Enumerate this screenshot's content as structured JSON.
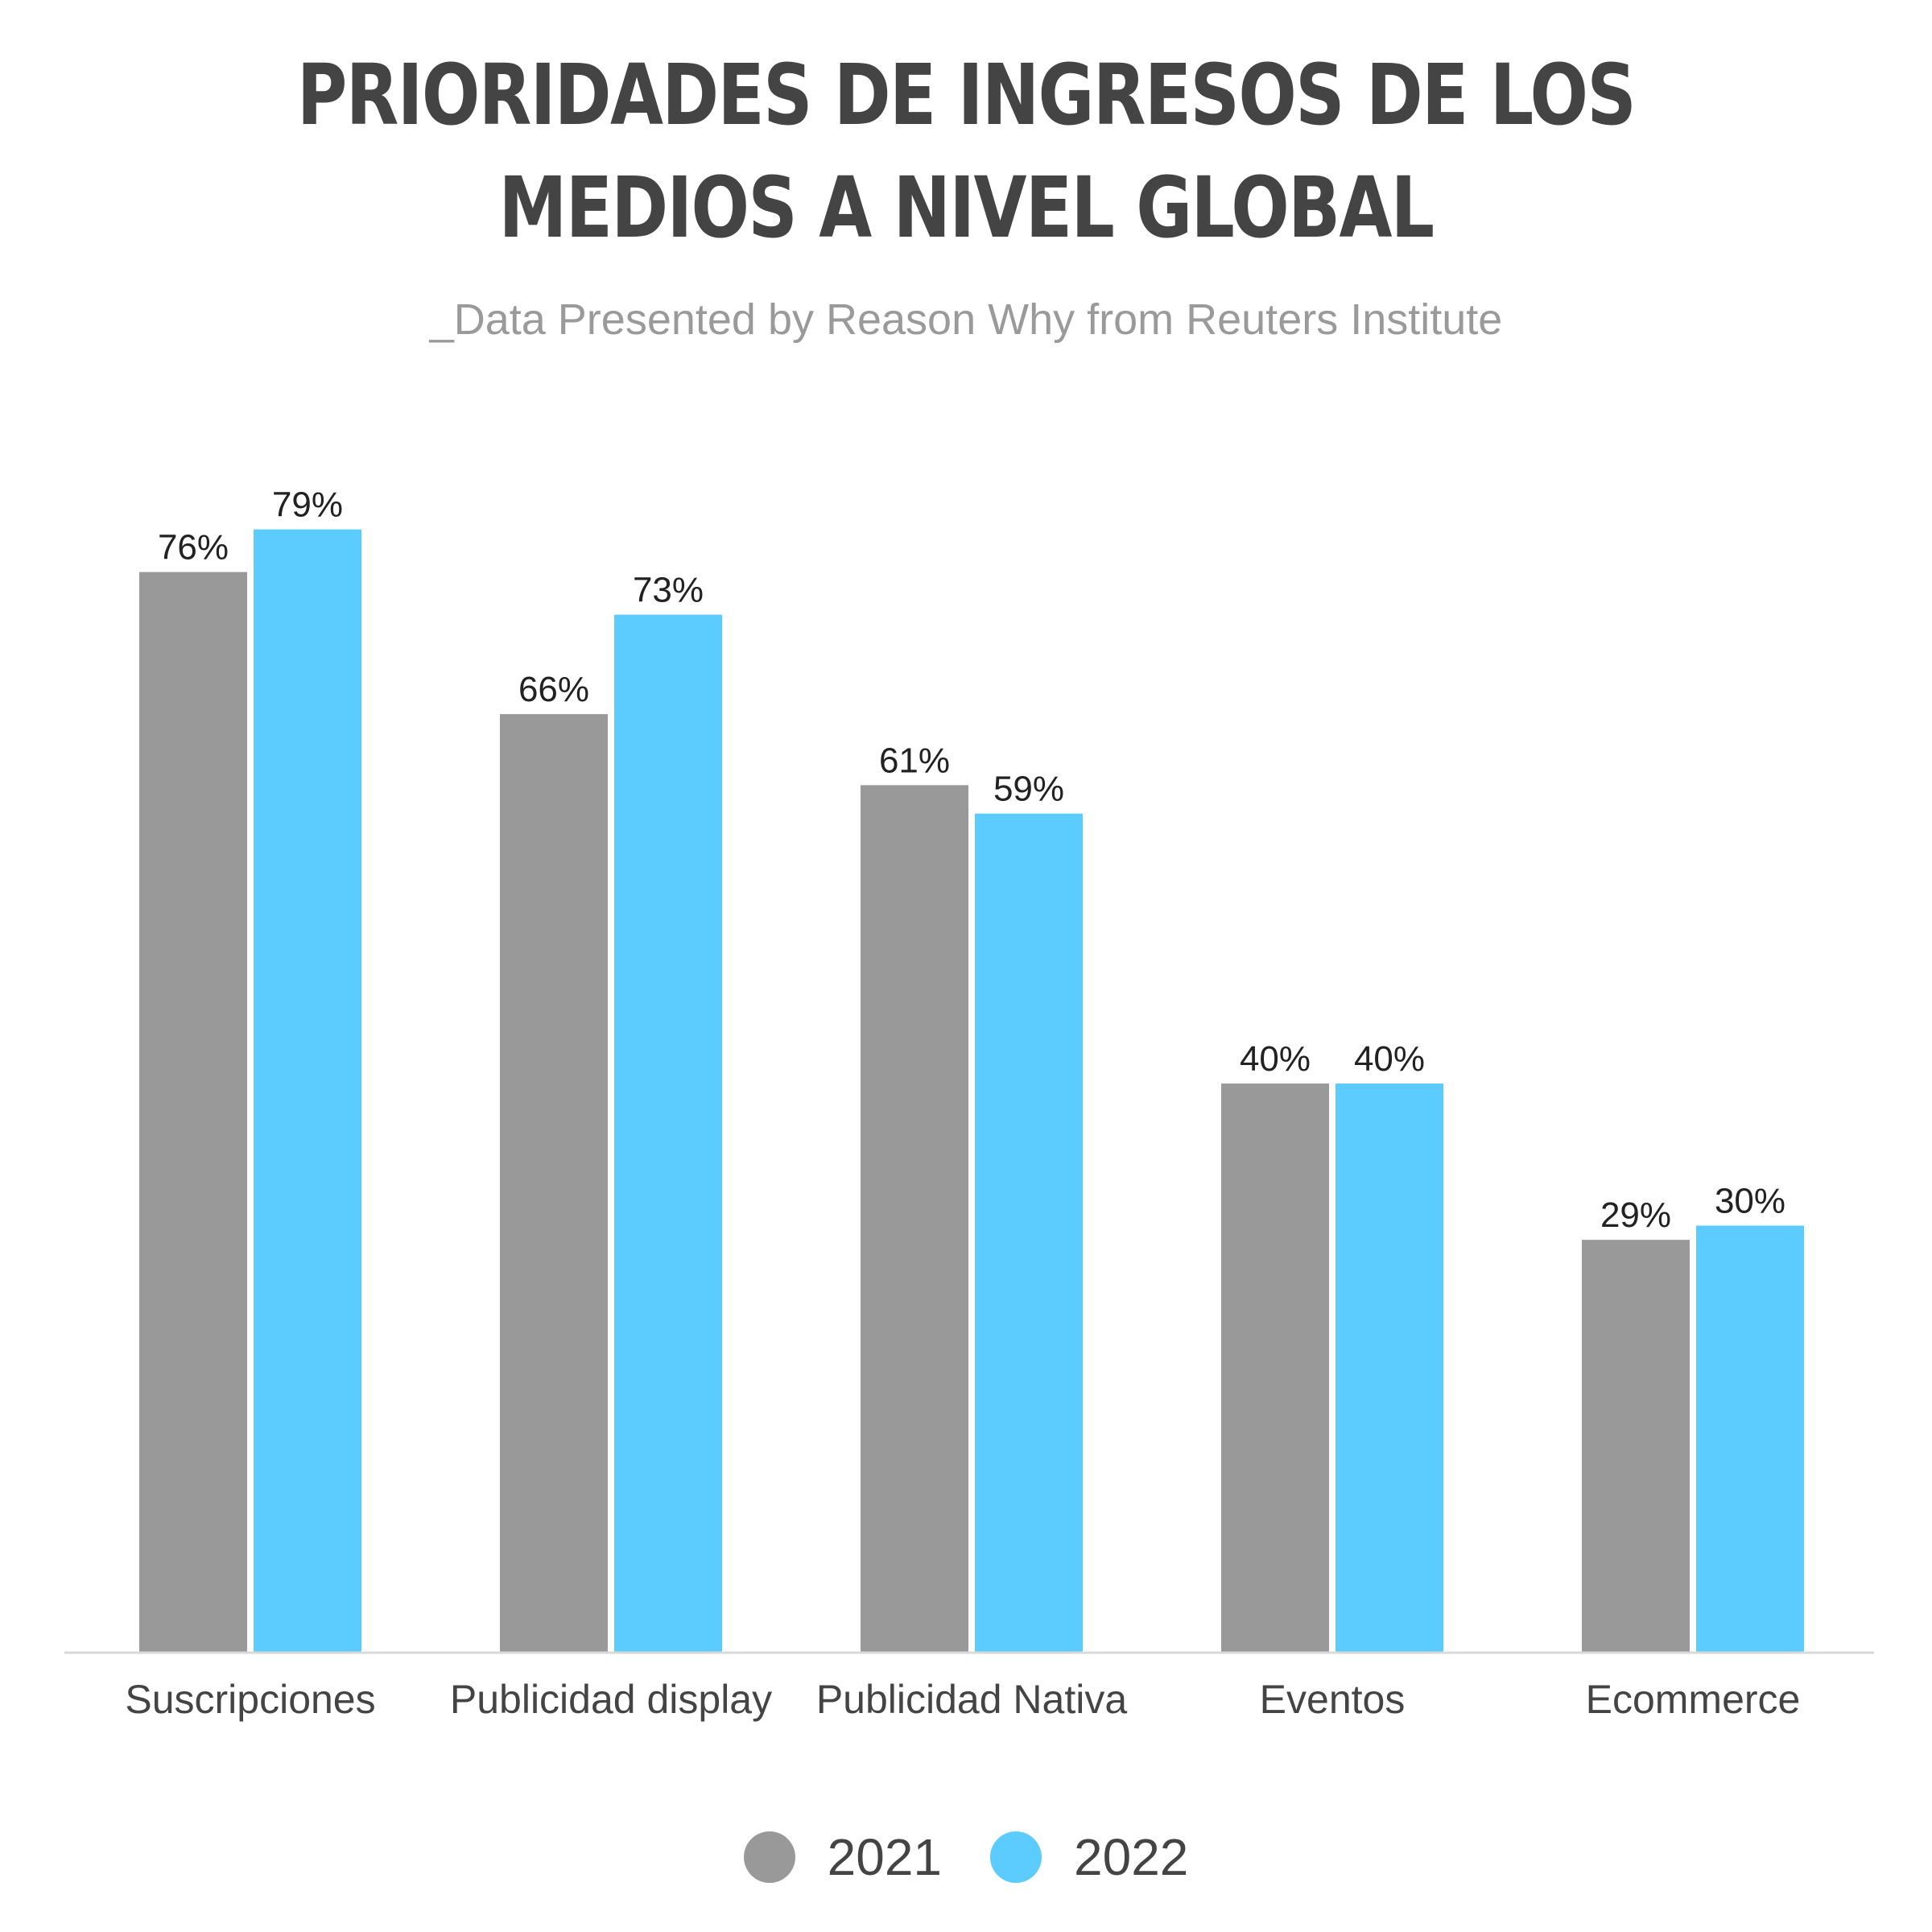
{
  "colors": {
    "title": "#444444",
    "subtitle": "#9a9a9a",
    "series_2021": "#999999",
    "series_2022": "#5bccfd",
    "axis": "#d9d9d9",
    "label": "#222222",
    "category": "#444444"
  },
  "chart_data": {
    "type": "bar",
    "title": "PRIORIDADES DE INGRESOS DE LOS MEDIOS A NIVEL GLOBAL",
    "title_lines": [
      "PRIORIDADES DE INGRESOS DE LOS",
      "MEDIOS A NIVEL GLOBAL"
    ],
    "subtitle": "_Data Presented by Reason Why from Reuters Institute",
    "categories": [
      "Suscripciones",
      "Publicidad display",
      "Publicidad Nativa",
      "Eventos",
      "Ecommerce"
    ],
    "series": [
      {
        "name": "2021",
        "values": [
          76,
          66,
          61,
          40,
          29
        ],
        "labels": [
          "76%",
          "66%",
          "61%",
          "40%",
          "29%"
        ]
      },
      {
        "name": "2022",
        "values": [
          79,
          73,
          59,
          40,
          30
        ],
        "labels": [
          "79%",
          "73%",
          "59%",
          "40%",
          "30%"
        ]
      }
    ],
    "xlabel": "",
    "ylabel": "",
    "ylim": [
      0,
      100
    ],
    "grid": false,
    "legend_position": "bottom-center"
  }
}
